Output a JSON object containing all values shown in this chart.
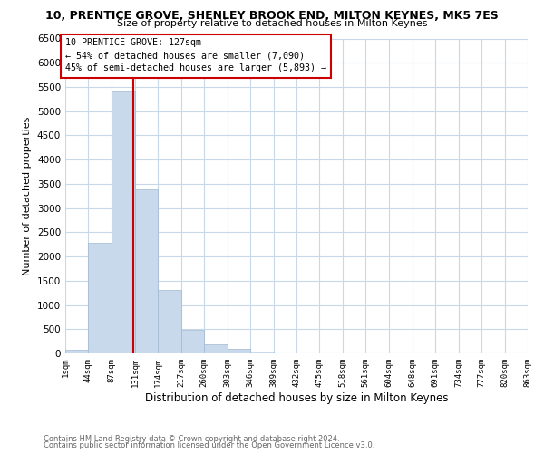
{
  "title": "10, PRENTICE GROVE, SHENLEY BROOK END, MILTON KEYNES, MK5 7ES",
  "subtitle": "Size of property relative to detached houses in Milton Keynes",
  "xlabel": "Distribution of detached houses by size in Milton Keynes",
  "ylabel": "Number of detached properties",
  "bin_edges": [
    1,
    44,
    87,
    131,
    174,
    217,
    260,
    303,
    346,
    389,
    432,
    475,
    518,
    561,
    604,
    648,
    691,
    734,
    777,
    820,
    863
  ],
  "bin_heights": [
    75,
    2285,
    5430,
    3380,
    1310,
    480,
    190,
    95,
    30,
    5,
    2,
    1,
    0,
    0,
    0,
    0,
    0,
    0,
    0,
    0
  ],
  "bar_color": "#c8d9ec",
  "bar_edgecolor": "#a0b8d0",
  "vline_x": 127,
  "vline_color": "#cc0000",
  "annotation_title": "10 PRENTICE GROVE: 127sqm",
  "annotation_line1": "← 54% of detached houses are smaller (7,090)",
  "annotation_line2": "45% of semi-detached houses are larger (5,893) →",
  "annotation_box_edgecolor": "#cc0000",
  "ylim": [
    0,
    6500
  ],
  "yticks": [
    0,
    500,
    1000,
    1500,
    2000,
    2500,
    3000,
    3500,
    4000,
    4500,
    5000,
    5500,
    6000,
    6500
  ],
  "tick_labels": [
    "1sqm",
    "44sqm",
    "87sqm",
    "131sqm",
    "174sqm",
    "217sqm",
    "260sqm",
    "303sqm",
    "346sqm",
    "389sqm",
    "432sqm",
    "475sqm",
    "518sqm",
    "561sqm",
    "604sqm",
    "648sqm",
    "691sqm",
    "734sqm",
    "777sqm",
    "820sqm",
    "863sqm"
  ],
  "footer_line1": "Contains HM Land Registry data © Crown copyright and database right 2024.",
  "footer_line2": "Contains public sector information licensed under the Open Government Licence v3.0.",
  "background_color": "#ffffff",
  "grid_color": "#c8d8e8"
}
